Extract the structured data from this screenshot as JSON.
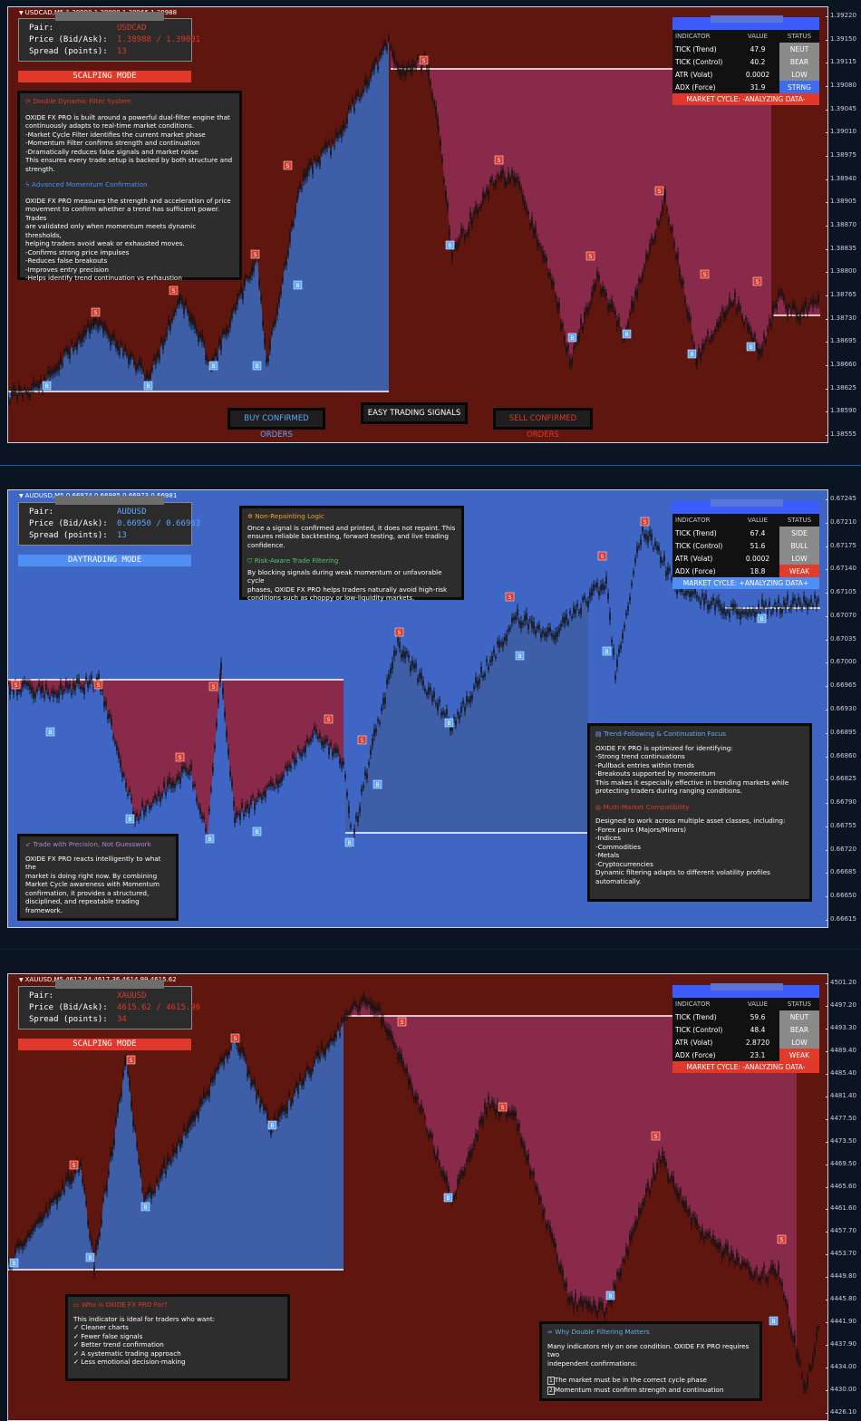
{
  "colors": {
    "red_bg": "#5e160f",
    "blue_bg": "#3f66c4",
    "bull_fill": "#3e5ea8",
    "bear_fill": "#8a2a4a",
    "neut": "#8a8a8a",
    "bull": "#8a8a8a",
    "strong": "#3c6df0",
    "weak": "#e23b2c",
    "mode_red": "#e0392b",
    "mode_blue": "#4f8ef5",
    "buy_signal": "#5fa8ff",
    "sell_signal": "#e03a2c"
  },
  "charts": [
    {
      "symbol_line": "USDCAD,M5  1.38980 1.38988 1.38966 1.38988",
      "pair_label": "Pair:",
      "pair": "USDCAD",
      "price_label": "Price (Bid/Ask):",
      "price": "1.38988 / 1.39001",
      "spread_label": "Spread (points):",
      "spread": "13",
      "mode": "SCALPING MODE",
      "yticks": [
        "1.39220",
        "1.39150",
        "1.39115",
        "1.39080",
        "1.39045",
        "1.39010",
        "1.38975",
        "1.38940",
        "1.38905",
        "1.38870",
        "1.38835",
        "1.38800",
        "1.38765",
        "1.38730",
        "1.38695",
        "1.38660",
        "1.38625",
        "1.38590",
        "1.38555"
      ],
      "indicator": {
        "headers": [
          "INDICATOR",
          "VALUE",
          "STATUS"
        ],
        "rows": [
          {
            "name": "TICK (Trend)",
            "value": "47.9",
            "status": "NEUT"
          },
          {
            "name": "TICK (Control)",
            "value": "40.2",
            "status": "BEAR"
          },
          {
            "name": "ATR (Volat)",
            "value": "0.0002",
            "status": "LOW"
          },
          {
            "name": "ADX (Force)",
            "value": "31.9",
            "status": "STRNG"
          }
        ],
        "cycle": "MARKET CYCLE: -ANALYZING DATA-"
      },
      "note1": {
        "title": "Double Dynamic Filter System",
        "body": "OXIDE FX PRO is built around a powerful dual-filter engine that\ncontinuously adapts to real-time market conditions.\n-Market Cycle Filter identifies the current market phase\n-Momentum Filter confirms strength and continuation\n-Dramatically reduces false signals and market noise\nThis ensures every trade setup is backed by both structure and\nstrength.",
        "title2": "Advanced Momentum Confirmation",
        "body2": "OXIDE FX PRO measures the strength and acceleration of price\nmovement to confirm whether a trend has sufficient power. Trades\nare validated only when momentum meets dynamic thresholds,\nhelping traders avoid weak or exhausted moves.\n-Confirms strong price impulses\n-Reduces false breakouts\n-Improves entry precision\n-Helps identify trend continuation vs exhaustion"
      },
      "buttons": {
        "buy": "BUY CONFIRMED ORDERS",
        "easy": "EASY TRADING SIGNALS",
        "sell": "SELL CONFIRMED ORDERS"
      }
    },
    {
      "symbol_line": "AUDUSD,M5  0.66974 0.66985 0.66973 0.66981",
      "pair_label": "Pair:",
      "pair": "AUDUSD",
      "price_label": "Price (Bid/Ask):",
      "price": "0.66950 / 0.66963",
      "spread_label": "Spread (points):",
      "spread": "13",
      "mode": "DAYTRADING MODE",
      "yticks": [
        "0.67245",
        "0.67210",
        "0.67175",
        "0.67140",
        "0.67105",
        "0.67070",
        "0.67035",
        "0.67000",
        "0.66965",
        "0.66930",
        "0.66895",
        "0.66860",
        "0.66825",
        "0.66790",
        "0.66755",
        "0.66720",
        "0.66685",
        "0.66650",
        "0.66615"
      ],
      "indicator": {
        "headers": [
          "INDICATOR",
          "VALUE",
          "STATUS"
        ],
        "rows": [
          {
            "name": "TICK (Trend)",
            "value": "67.4",
            "status": "SIDE"
          },
          {
            "name": "TICK (Control)",
            "value": "51.6",
            "status": "BULL"
          },
          {
            "name": "ATR (Volat)",
            "value": "0.0002",
            "status": "LOW"
          },
          {
            "name": "ADX (Force)",
            "value": "18.8",
            "status": "WEAK"
          }
        ],
        "cycle": "MARKET CYCLE: +ANALYZING DATA+"
      },
      "note_top": {
        "title": "Non-Repainting Logic",
        "body": "Once a signal is confirmed and printed, it does not repaint. This\nensures reliable backtesting, forward testing, and live trading\nconfidence.",
        "title2": "Risk-Aware Trade Filtering",
        "body2": "By blocking signals during weak momentum or unfavorable cycle\nphases, OXIDE FX PRO helps traders naturally avoid high-risk\nconditions such as choppy or low-liquidity markets."
      },
      "note_left": {
        "title": "Trade with Precision, Not Guesswork",
        "body": "OXIDE FX PRO reacts intelligently to what the\nmarket is doing right now. By combining\nMarket Cycle awareness with Momentum\nconfirmation, it provides a structured,\ndisciplined, and repeatable trading\nframework."
      },
      "note_right": {
        "title": "Trend-Following & Continuation Focus",
        "body": "OXIDE FX PRO is optimized for identifying:\n-Strong trend continuations\n-Pullback entries within trends\n-Breakouts supported by momentum\nThis makes it especially effective in trending markets while\nprotecting traders during ranging conditions.",
        "title2": "Multi-Market Compatibility",
        "body2": "Designed to work across multiple asset classes, including:\n-Forex pairs (Majors/Minors)\n-Indices\n-Commodities\n-Metals\n-Cryptocurrencies\nDynamic filtering adapts to different volatility profiles\nautomatically."
      }
    },
    {
      "symbol_line": "XAUUSD,M5  4617.34 4617.36 4614.99 4615.62",
      "pair_label": "Pair:",
      "pair": "XAUUSD",
      "price_label": "Price (Bid/Ask):",
      "price": "4615.62 / 4615.96",
      "spread_label": "Spread (points):",
      "spread": "34",
      "mode": "SCALPING MODE",
      "yticks": [
        "4501.20",
        "4497.20",
        "4493.30",
        "4489.40",
        "4485.40",
        "4481.40",
        "4477.50",
        "4473.50",
        "4469.50",
        "4465.60",
        "4461.60",
        "4457.70",
        "4453.70",
        "4449.80",
        "4445.80",
        "4441.90",
        "4437.90",
        "4434.00",
        "4430.00",
        "4426.10"
      ],
      "indicator": {
        "headers": [
          "INDICATOR",
          "VALUE",
          "STATUS"
        ],
        "rows": [
          {
            "name": "TICK (Trend)",
            "value": "59.6",
            "status": "NEUT"
          },
          {
            "name": "TICK (Control)",
            "value": "48.4",
            "status": "BEAR"
          },
          {
            "name": "ATR (Volat)",
            "value": "2.8720",
            "status": "LOW"
          },
          {
            "name": "ADX (Force)",
            "value": "23.1",
            "status": "WEAK"
          }
        ],
        "cycle": "MARKET CYCLE: -ANALYZING DATA-"
      },
      "note_left": {
        "title": "Who is OXIDE FX PRO For?",
        "body": "This indicator is ideal for traders who want:\n✓ Cleaner charts\n✓ Fewer false signals\n✓ Better trend confirmation\n✓ A systematic trading approach\n✓ Less emotional decision-making"
      },
      "note_right": {
        "title": "Why Double Filtering Matters",
        "body": "Many indicators rely on one condition. OXIDE FX PRO requires two\nindependent confirmations:",
        "item1": "The market must be in the correct cycle phase",
        "item2": "Momentum must confirm strength and continuation"
      }
    }
  ]
}
